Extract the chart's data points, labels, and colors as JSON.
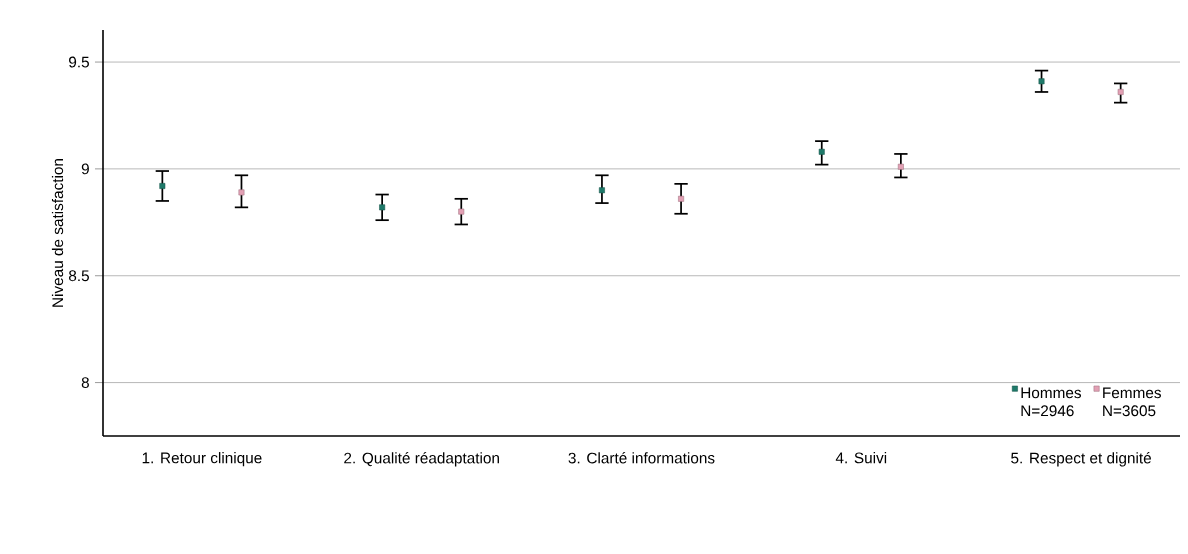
{
  "chart_data": {
    "type": "scatter",
    "ylabel": "Niveau de satisfaction",
    "categories": [
      "1. Retour clinique",
      "2. Qualité réadaptation",
      "3. Clarté informations",
      "4. Suivi",
      "5. Respect et dignité"
    ],
    "series": [
      {
        "name": "Hommes N=2946",
        "color": "#1f7a6a",
        "values": [
          8.92,
          8.82,
          8.9,
          9.08,
          9.41
        ],
        "errors": [
          [
            8.85,
            8.99
          ],
          [
            8.76,
            8.88
          ],
          [
            8.84,
            8.97
          ],
          [
            9.02,
            9.13
          ],
          [
            9.36,
            9.46
          ]
        ]
      },
      {
        "name": "Femmes N=3605",
        "color": "#e2a0b4",
        "values": [
          8.89,
          8.8,
          8.86,
          9.01,
          9.36
        ],
        "errors": [
          [
            8.82,
            8.97
          ],
          [
            8.74,
            8.86
          ],
          [
            8.79,
            8.93
          ],
          [
            8.96,
            9.07
          ],
          [
            9.31,
            9.4
          ]
        ]
      }
    ],
    "marker": "square",
    "ylim": [
      7.75,
      9.65
    ],
    "yticks": [
      8,
      8.5,
      9,
      9.5
    ],
    "grid": "y",
    "legend": "bottom right"
  }
}
